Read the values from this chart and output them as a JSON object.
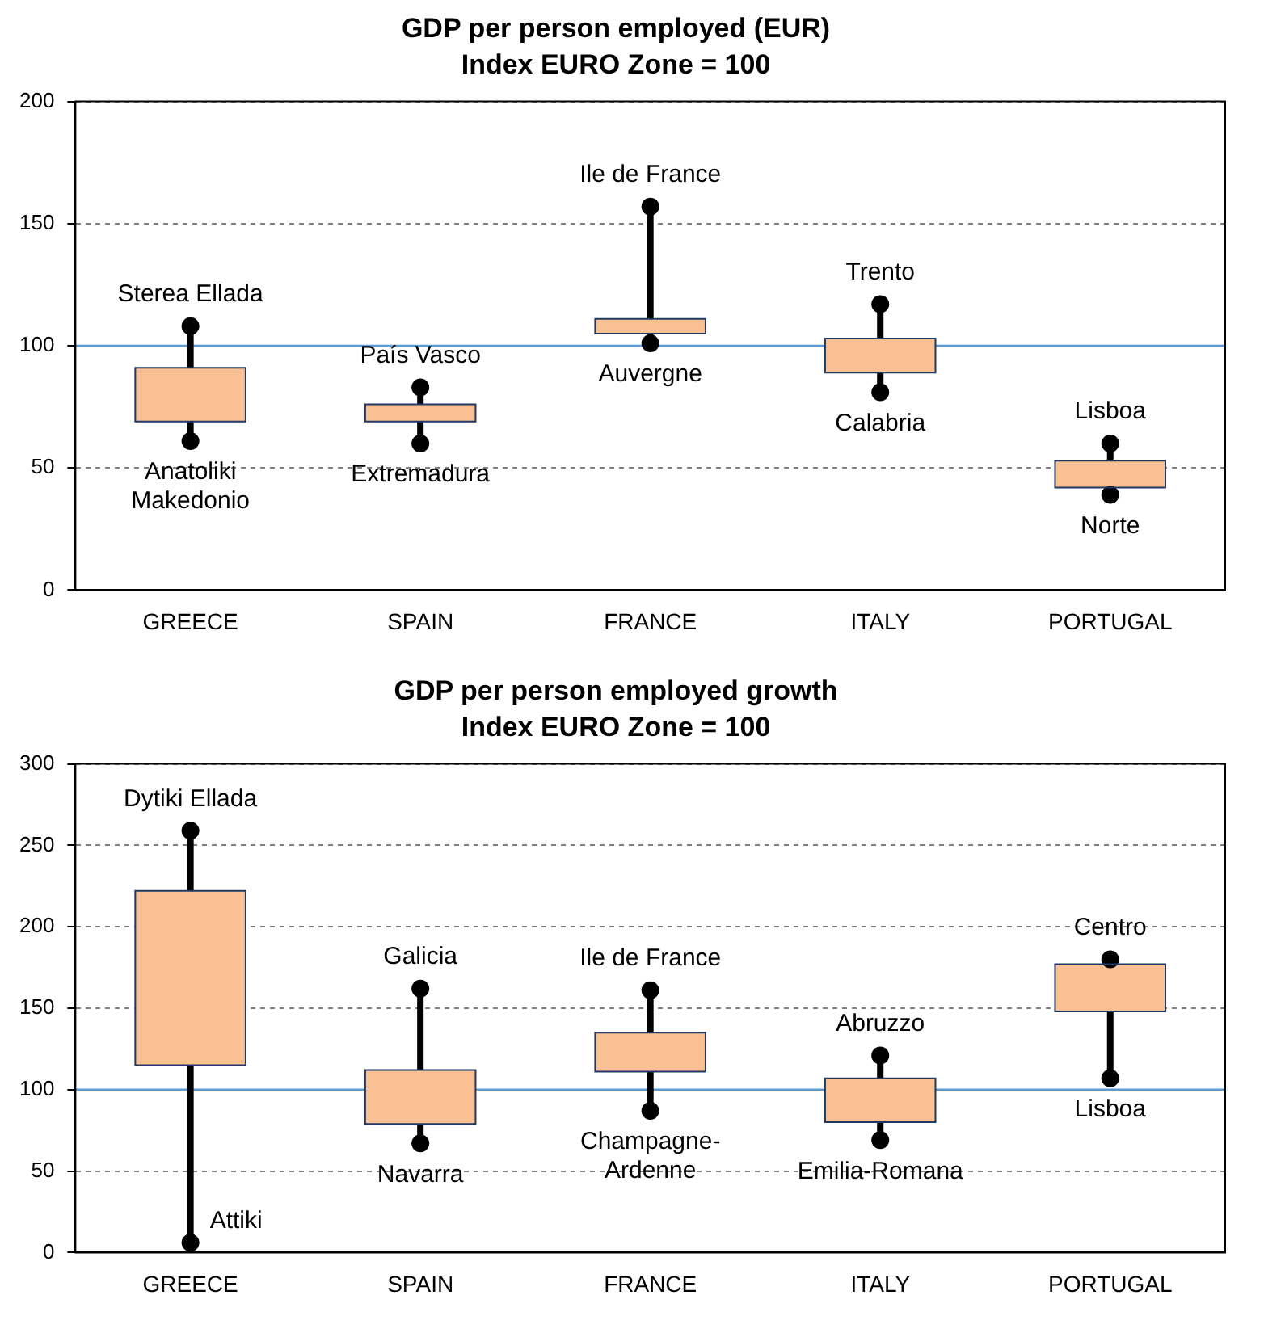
{
  "chart_data": [
    {
      "type": "box",
      "title": "GDP per person employed (EUR)",
      "subtitle": "Index EURO Zone = 100",
      "categories": [
        "GREECE",
        "SPAIN",
        "FRANCE",
        "ITALY",
        "PORTUGAL"
      ],
      "color": "#f8c093",
      "boxes": [
        {
          "low": 61,
          "q1": 69,
          "q3": 91,
          "high": 108
        },
        {
          "low": 60,
          "q1": 69,
          "q3": 76,
          "high": 83
        },
        {
          "low": 101,
          "q1": 105,
          "q3": 111,
          "high": 157
        },
        {
          "low": 81,
          "q1": 89,
          "q3": 103,
          "high": 117
        },
        {
          "low": 39,
          "q1": 42,
          "q3": 53,
          "high": 60
        }
      ],
      "ylim": [
        0,
        200
      ],
      "yticks": [
        0,
        50,
        100,
        150,
        200
      ],
      "grid": "y",
      "legend": false,
      "ref_lines": [
        {
          "axis": "y",
          "value": 100,
          "color": "#5b9bd5"
        }
      ],
      "annotations": [
        {
          "text": "Sterea Ellada",
          "x": "GREECE",
          "y": 108
        },
        {
          "text": "Anatoliki\nMakedonio",
          "x": "GREECE",
          "y": 61
        },
        {
          "text": "País Vasco",
          "x": "SPAIN",
          "y": 83
        },
        {
          "text": "Extremadura",
          "x": "SPAIN",
          "y": 60
        },
        {
          "text": "Ile de France",
          "x": "FRANCE",
          "y": 157
        },
        {
          "text": "Auvergne",
          "x": "FRANCE",
          "y": 101
        },
        {
          "text": "Trento",
          "x": "ITALY",
          "y": 117
        },
        {
          "text": "Calabria",
          "x": "ITALY",
          "y": 81
        },
        {
          "text": "Lisboa",
          "x": "PORTUGAL",
          "y": 60
        },
        {
          "text": "Norte",
          "x": "PORTUGAL",
          "y": 39
        }
      ]
    },
    {
      "type": "box",
      "title": "GDP per person employed growth",
      "subtitle": "Index EURO Zone = 100",
      "categories": [
        "GREECE",
        "SPAIN",
        "FRANCE",
        "ITALY",
        "PORTUGAL"
      ],
      "color": "#f8c093",
      "boxes": [
        {
          "low": 6,
          "q1": 115,
          "q3": 222,
          "high": 259
        },
        {
          "low": 67,
          "q1": 79,
          "q3": 112,
          "high": 162
        },
        {
          "low": 87,
          "q1": 111,
          "q3": 135,
          "high": 161
        },
        {
          "low": 69,
          "q1": 80,
          "q3": 107,
          "high": 121
        },
        {
          "low": 107,
          "q1": 148,
          "q3": 177,
          "high": 180
        }
      ],
      "ylim": [
        0,
        300
      ],
      "yticks": [
        0,
        50,
        100,
        150,
        200,
        250,
        300
      ],
      "grid": "y",
      "legend": false,
      "ref_lines": [
        {
          "axis": "y",
          "value": 100,
          "color": "#5b9bd5"
        }
      ],
      "annotations": [
        {
          "text": "Dytiki Ellada",
          "x": "GREECE",
          "y": 259
        },
        {
          "text": "Attiki",
          "x": "GREECE",
          "y": 6
        },
        {
          "text": "Galicia",
          "x": "SPAIN",
          "y": 162
        },
        {
          "text": "Navarra",
          "x": "SPAIN",
          "y": 67
        },
        {
          "text": "Ile de France",
          "x": "FRANCE",
          "y": 161
        },
        {
          "text": "Champagne-\nArdenne",
          "x": "FRANCE",
          "y": 87
        },
        {
          "text": "Abruzzo",
          "x": "ITALY",
          "y": 121
        },
        {
          "text": "Emilia-Romana",
          "x": "ITALY",
          "y": 69
        },
        {
          "text": "Centro",
          "x": "PORTUGAL",
          "y": 180
        },
        {
          "text": "Lisboa",
          "x": "PORTUGAL",
          "y": 107
        }
      ]
    }
  ]
}
